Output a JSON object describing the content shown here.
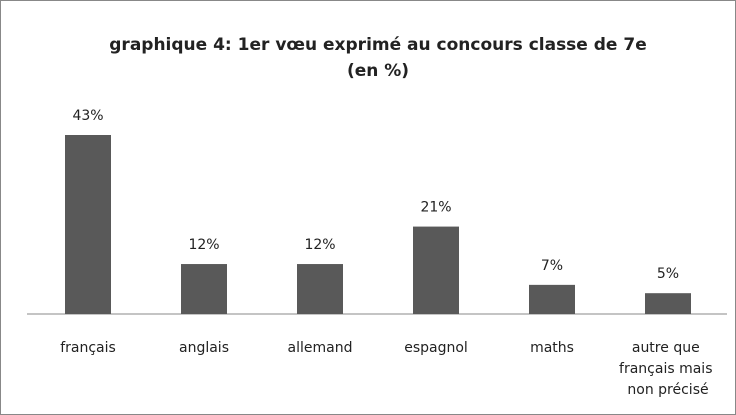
{
  "chart_data": {
    "type": "bar",
    "title": [
      "graphique 4: 1er vœu exprimé au concours classe de 7e",
      "(en %)"
    ],
    "categories": [
      "français",
      "anglais",
      "allemand",
      "espagnol",
      "maths",
      "autre que français mais non précisé"
    ],
    "values": [
      43,
      12,
      12,
      21,
      7,
      5
    ],
    "value_labels": [
      "43%",
      "12%",
      "12%",
      "21%",
      "7%",
      "5%"
    ],
    "color": "#595959"
  }
}
